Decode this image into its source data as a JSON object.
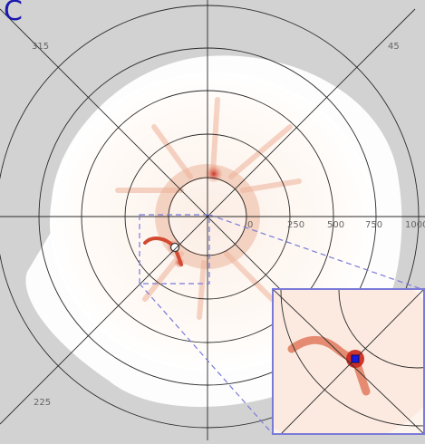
{
  "panel": {
    "letter": "C"
  },
  "polar_plot": {
    "angle_labels": [
      "315",
      "45",
      "225"
    ],
    "radial_labels": [
      "0",
      "250",
      "500",
      "750",
      "1000"
    ]
  },
  "colors": {
    "background": "#d2d2d2",
    "grid": "#2a2a2a",
    "label": "#666666",
    "inset_frame": "#7a7ad8",
    "marker": "#1a1ae0",
    "heat_low": "#f6e2d6",
    "heat_high": "#c8241a"
  },
  "inset": {
    "title": ""
  }
}
